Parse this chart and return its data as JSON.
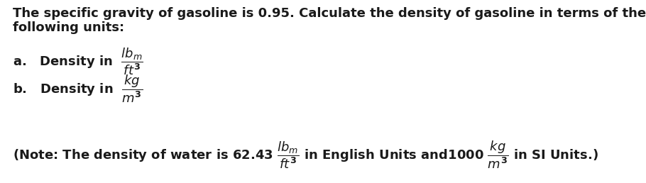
{
  "background_color": "#ffffff",
  "figsize": [
    9.1,
    2.58
  ],
  "dpi": 100,
  "text_color": "#1a1a1a",
  "font_size": 13.0,
  "font_weight": "bold",
  "font_family": "DejaVu Sans"
}
